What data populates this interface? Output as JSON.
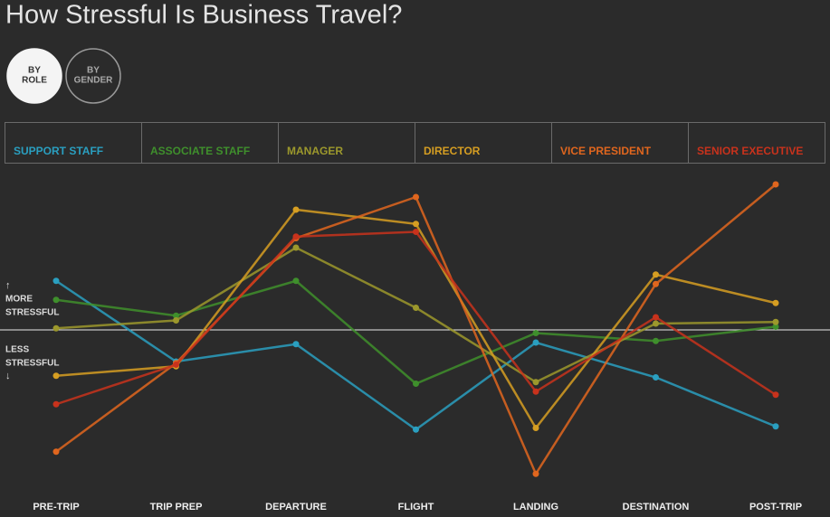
{
  "chart_data": {
    "type": "line",
    "title": "How Stressful Is Business Travel?",
    "controls": [
      {
        "lines": [
          "BY",
          "ROLE"
        ],
        "selected": true
      },
      {
        "lines": [
          "BY",
          "GENDER"
        ],
        "selected": false
      }
    ],
    "annotations": [
      {
        "lines": [
          "MORE",
          "STRESSFUL"
        ]
      },
      {
        "lines": [
          "LESS",
          "STRESSFUL"
        ]
      }
    ],
    "categories": [
      "PRE-TRIP",
      "TRIP PREP",
      "DEPARTURE",
      "FLIGHT",
      "LANDING",
      "DESTINATION",
      "POST-TRIP"
    ],
    "ylim": [
      -10,
      10
    ],
    "series": [
      {
        "name": "SUPPORT STAFF",
        "color": "#2a9fc0",
        "values": [
          3.1,
          -2.0,
          -0.9,
          -6.3,
          -0.8,
          -3.0,
          -6.1
        ]
      },
      {
        "name": "ASSOCIATE STAFF",
        "color": "#3f8f2c",
        "values": [
          1.9,
          0.9,
          3.1,
          -3.4,
          -0.2,
          -0.7,
          0.2
        ]
      },
      {
        "name": "MANAGER",
        "color": "#9c982c",
        "values": [
          0.1,
          0.6,
          5.2,
          1.4,
          -3.3,
          0.4,
          0.5
        ]
      },
      {
        "name": "DIRECTOR",
        "color": "#d69e22",
        "values": [
          -2.9,
          -2.3,
          7.6,
          6.7,
          -6.2,
          3.5,
          1.7
        ]
      },
      {
        "name": "VICE PRESIDENT",
        "color": "#e0661e",
        "values": [
          -7.7,
          -2.1,
          5.8,
          8.4,
          -9.1,
          2.9,
          9.2
        ]
      },
      {
        "name": "SENIOR EXECUTIVE",
        "color": "#c8321c",
        "values": [
          -4.7,
          -2.2,
          5.9,
          6.2,
          -3.9,
          0.8,
          -4.1
        ]
      }
    ]
  }
}
